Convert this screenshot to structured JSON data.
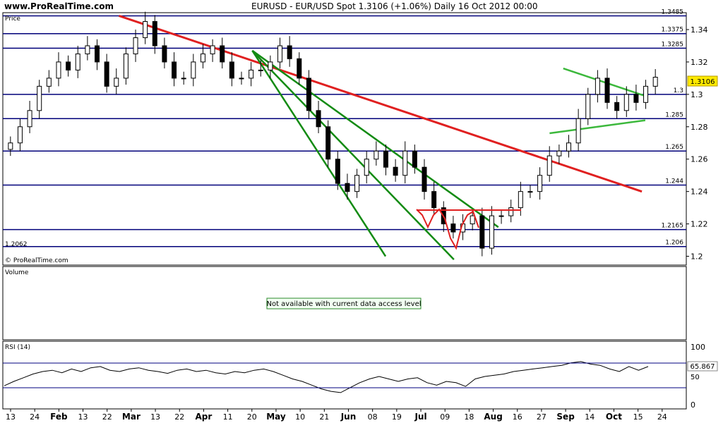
{
  "header": {
    "site": "www.ProRealTime.com",
    "title": "EURUSD - EUR/USD Spot    1.3106 (+1.06%)    Daily  16 Oct 2012 00:00"
  },
  "chart_data": [
    {
      "type": "candlestick",
      "panel_label": "Price",
      "watermark": "© ProRealTime.com",
      "last_price": "1.3106",
      "ylim": [
        1.195,
        1.35
      ],
      "y_ticks": [
        "1.34",
        "1.32",
        "1.3",
        "1.28",
        "1.26",
        "1.24",
        "1.22",
        "1.2"
      ],
      "x_labels": [
        "13",
        "24",
        "Feb",
        "13",
        "22",
        "Mar",
        "13",
        "22",
        "Apr",
        "11",
        "20",
        "May",
        "10",
        "21",
        "Jun",
        "08",
        "19",
        "Jul",
        "09",
        "18",
        "Aug",
        "16",
        "27",
        "Sep",
        "14",
        "Oct",
        "15",
        "24"
      ],
      "horizontal_levels": [
        {
          "label": "1.3485",
          "value": 1.3485
        },
        {
          "label": "1.3375",
          "value": 1.3375
        },
        {
          "label": "1.3285",
          "value": 1.3285
        },
        {
          "label": "1.3",
          "value": 1.3
        },
        {
          "label": "1.285",
          "value": 1.285
        },
        {
          "label": "1.265",
          "value": 1.265
        },
        {
          "label": "1.244",
          "value": 1.244
        },
        {
          "label": "1.2165",
          "value": 1.2165
        },
        {
          "label": "1.206",
          "value": 1.206
        }
      ],
      "left_level_label": "1.2062",
      "trend_lines": [
        {
          "color": "#e02020",
          "from": [
            0.17,
            1.3485
          ],
          "to": [
            0.935,
            1.24
          ]
        },
        {
          "color": "#138b13",
          "from": [
            0.365,
            1.327
          ],
          "to": [
            0.56,
            1.2
          ]
        },
        {
          "color": "#138b13",
          "from": [
            0.365,
            1.327
          ],
          "to": [
            0.66,
            1.198
          ]
        },
        {
          "color": "#138b13",
          "from": [
            0.365,
            1.327
          ],
          "to": [
            0.725,
            1.218
          ]
        },
        {
          "color": "#3cb83c",
          "from": [
            0.82,
            1.316
          ],
          "to": [
            0.94,
            1.299
          ]
        },
        {
          "color": "#3cb83c",
          "from": [
            0.8,
            1.276
          ],
          "to": [
            0.94,
            1.284
          ]
        }
      ],
      "closes": [
        1.27,
        1.28,
        1.29,
        1.305,
        1.31,
        1.32,
        1.315,
        1.325,
        1.33,
        1.32,
        1.305,
        1.31,
        1.325,
        1.335,
        1.345,
        1.33,
        1.32,
        1.31,
        1.31,
        1.32,
        1.325,
        1.33,
        1.32,
        1.31,
        1.31,
        1.315,
        1.315,
        1.32,
        1.33,
        1.322,
        1.31,
        1.29,
        1.28,
        1.26,
        1.245,
        1.24,
        1.25,
        1.26,
        1.265,
        1.255,
        1.25,
        1.265,
        1.255,
        1.24,
        1.23,
        1.22,
        1.215,
        1.22,
        1.225,
        1.205,
        1.225,
        1.225,
        1.23,
        1.24,
        1.24,
        1.25,
        1.262,
        1.265,
        1.27,
        1.285,
        1.3,
        1.31,
        1.295,
        1.29,
        1.3,
        1.295,
        1.305,
        1.3106
      ]
    },
    {
      "type": "note",
      "panel_label": "Volume",
      "message": "Not available with current data access level"
    },
    {
      "type": "line",
      "panel_label": "RSI (14)",
      "y_ticks": [
        "100",
        "50",
        "0"
      ],
      "levels": [
        70,
        30
      ],
      "last_value": "65.867",
      "values": [
        35,
        42,
        48,
        54,
        58,
        60,
        56,
        62,
        58,
        64,
        66,
        60,
        58,
        62,
        64,
        60,
        58,
        55,
        60,
        62,
        58,
        60,
        56,
        54,
        58,
        56,
        60,
        62,
        58,
        52,
        46,
        42,
        36,
        30,
        26,
        24,
        32,
        40,
        46,
        50,
        46,
        42,
        46,
        48,
        40,
        36,
        42,
        40,
        34,
        46,
        50,
        52,
        54,
        58,
        60,
        62,
        64,
        66,
        68,
        72,
        74,
        70,
        68,
        62,
        58,
        66,
        60,
        66
      ]
    }
  ]
}
